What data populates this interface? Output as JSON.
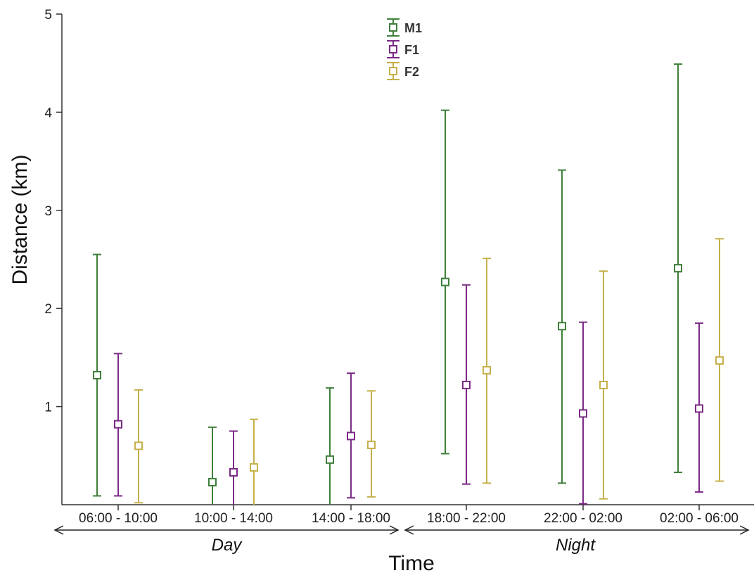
{
  "chart_data": {
    "type": "scatter",
    "title": "",
    "xlabel": "Time",
    "ylabel": "Distance (km)",
    "ylim": [
      0,
      5
    ],
    "yticks": [
      "1",
      "2",
      "3",
      "4",
      "5"
    ],
    "grid": false,
    "legend_position": "top-center",
    "categories": [
      "06:00 - 10:00",
      "10:00 - 14:00",
      "14:00 - 18:00",
      "18:00 - 22:00",
      "22:00 - 02:00",
      "02:00 - 06:00"
    ],
    "series": [
      {
        "name": "M1",
        "color": "#3f7f3a",
        "values": [
          1.32,
          0.23,
          0.46,
          2.27,
          1.82,
          2.41
        ],
        "lower": [
          0.09,
          0.0,
          0.0,
          0.52,
          0.22,
          0.33
        ],
        "upper": [
          2.55,
          0.79,
          1.19,
          4.02,
          3.41,
          4.49
        ]
      },
      {
        "name": "F1",
        "color": "#7b2a86",
        "values": [
          0.82,
          0.33,
          0.7,
          1.22,
          0.93,
          0.98
        ],
        "lower": [
          0.09,
          0.0,
          0.07,
          0.21,
          0.01,
          0.13
        ],
        "upper": [
          1.54,
          0.75,
          1.34,
          2.24,
          1.86,
          1.85
        ]
      },
      {
        "name": "F2",
        "color": "#c6b04a",
        "values": [
          0.6,
          0.38,
          0.61,
          1.37,
          1.22,
          1.47
        ],
        "lower": [
          0.02,
          0.0,
          0.08,
          0.22,
          0.06,
          0.24
        ],
        "upper": [
          1.17,
          0.87,
          1.16,
          2.51,
          2.38,
          2.71
        ]
      }
    ],
    "periods": [
      {
        "label": "Day",
        "from": 0,
        "to": 2
      },
      {
        "label": "Night",
        "from": 3,
        "to": 5
      }
    ]
  }
}
